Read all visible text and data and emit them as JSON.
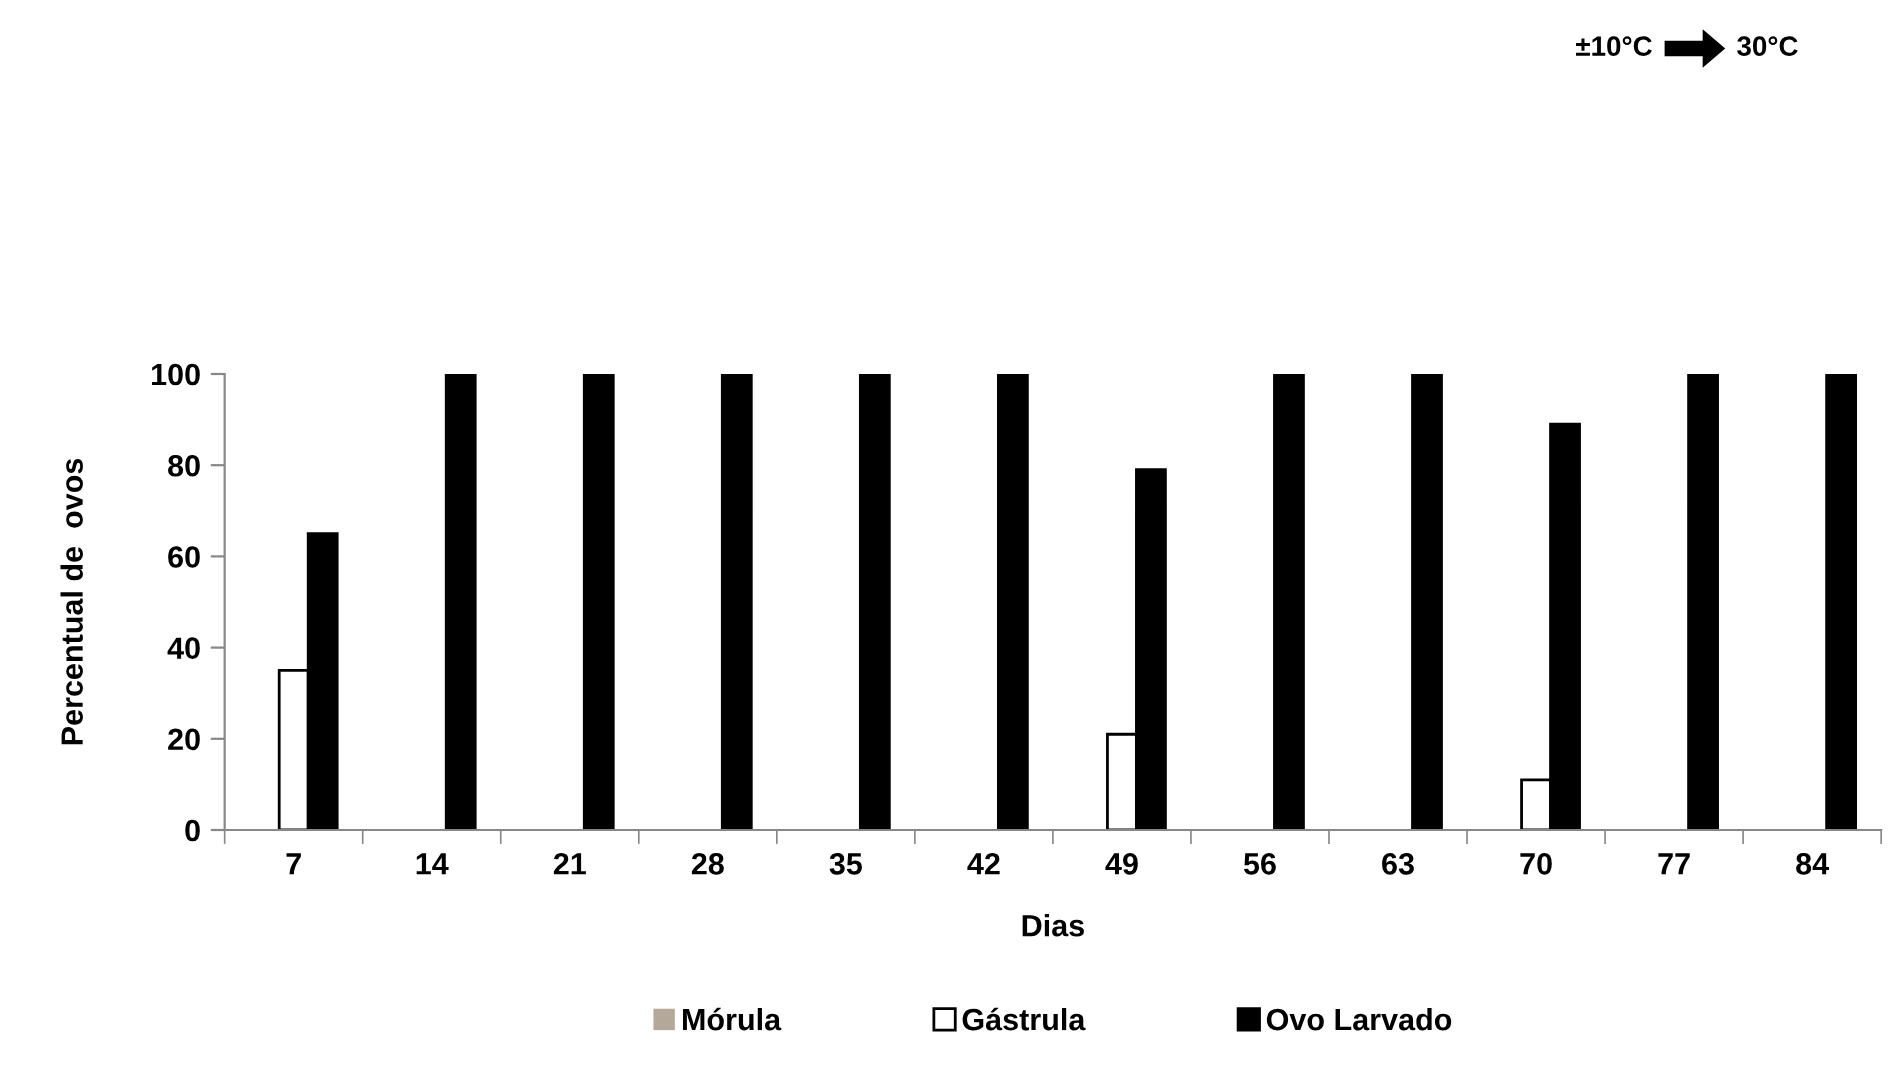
{
  "chart_data": {
    "type": "bar",
    "xlabel": "Dias",
    "ylabel": "Percentual de  ovos",
    "categories": [
      "7",
      "14",
      "21",
      "28",
      "35",
      "42",
      "49",
      "56",
      "63",
      "70",
      "77",
      "84"
    ],
    "series": [
      {
        "name": "Mórula",
        "color": "#b3a89a",
        "values": [
          0,
          0,
          0,
          0,
          0,
          0,
          0,
          0,
          0,
          0,
          0,
          0
        ]
      },
      {
        "name": "Gástrula",
        "color": "#ffffff",
        "values": [
          35,
          0,
          0,
          0,
          0,
          0,
          21,
          0,
          0,
          11,
          0,
          0
        ]
      },
      {
        "name": "Ovo Larvado",
        "color": "#000000",
        "values": [
          65,
          100,
          100,
          100,
          100,
          100,
          79,
          100,
          100,
          89,
          100,
          100
        ]
      }
    ],
    "ylim": [
      0,
      100
    ],
    "yticks": [
      0,
      20,
      40,
      60,
      80,
      100
    ],
    "grid": false,
    "legend": "bottom",
    "annotations": [
      "±10°C",
      "30°C"
    ]
  }
}
